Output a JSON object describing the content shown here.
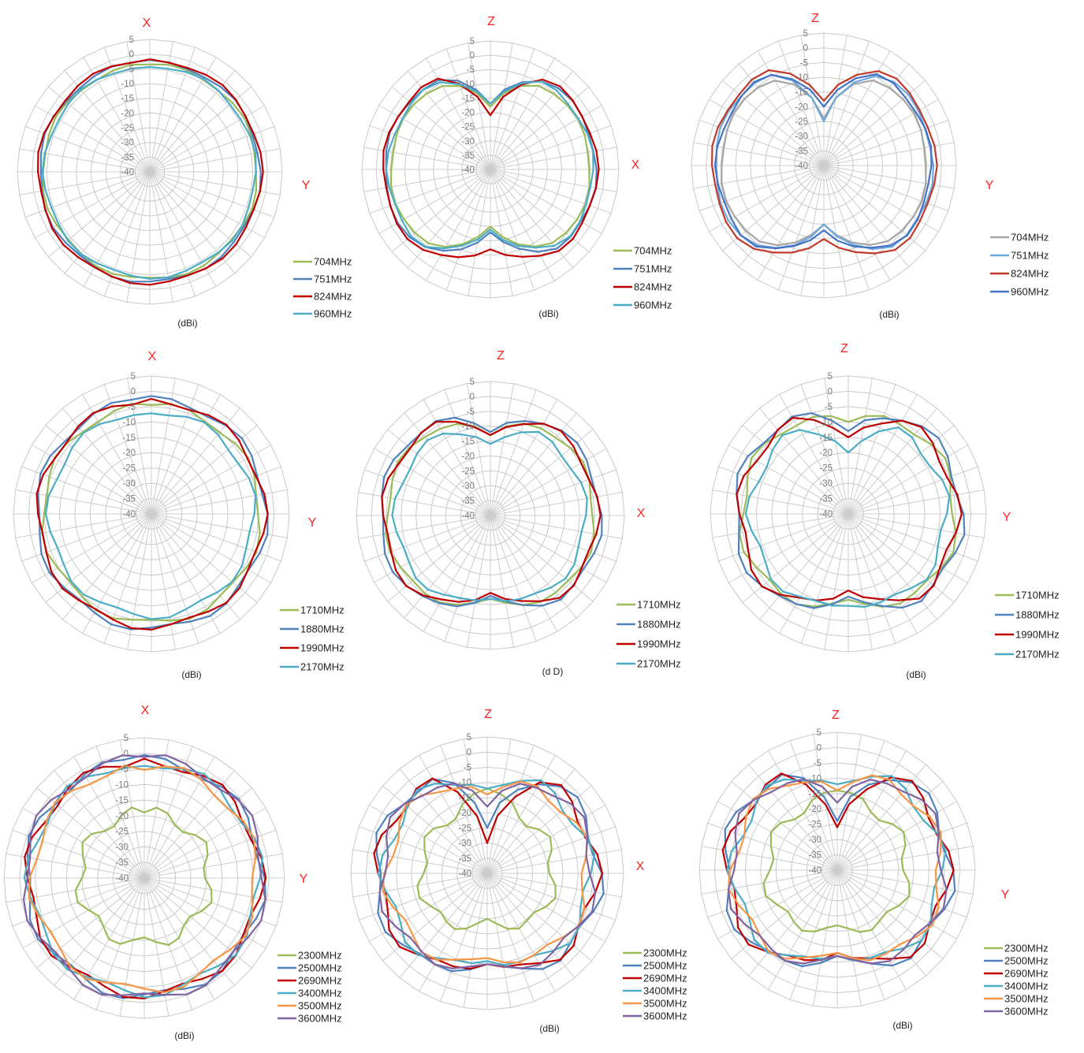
{
  "chart_data": [
    {
      "type": "polar-line",
      "letters": [
        "X",
        "Y"
      ],
      "unit": "(dBi)",
      "r_ticks": [
        "5",
        "0",
        "-5",
        "-10",
        "-15",
        "-20",
        "-25",
        "-30",
        "-35",
        "-40"
      ],
      "rlim": [
        -40,
        5
      ],
      "legend": [
        "704MHz",
        "751MHz",
        "824MHz",
        "960MHz"
      ],
      "series": [
        {
          "name": "704MHz",
          "color": "#9bbb59",
          "shape": "circle",
          "value": -3.5,
          "amp": 0.5,
          "phase": 0
        },
        {
          "name": "751MHz",
          "color": "#4f81bd",
          "shape": "circle",
          "value": -2.5,
          "amp": 0.5,
          "phase": 1
        },
        {
          "name": "824MHz",
          "color": "#c00000",
          "shape": "circle",
          "value": -2,
          "amp": 0.5,
          "phase": 2
        },
        {
          "name": "960MHz",
          "color": "#4bacc6",
          "shape": "circle",
          "value": -4,
          "amp": 0.5,
          "phase": 3
        }
      ]
    },
    {
      "type": "polar-line",
      "letters": [
        "Z",
        "X"
      ],
      "unit": "(dBi)",
      "r_ticks": [
        "5",
        "0",
        "-5",
        "-10",
        "-15",
        "-20",
        "-25",
        "-30",
        "-35",
        "-40"
      ],
      "rlim": [
        -40,
        5
      ],
      "legend": [
        "704MHz",
        "751MHz",
        "824MHz",
        "960MHz"
      ],
      "series": [
        {
          "name": "704MHz",
          "color": "#9bbb59",
          "shape": "heart",
          "value": -5,
          "amp": 0.5,
          "phase": 0,
          "notch_top": -18,
          "notch_bottom": -20
        },
        {
          "name": "751MHz",
          "color": "#4f81bd",
          "shape": "heart",
          "value": -3,
          "amp": 0.5,
          "phase": 1,
          "notch_top": -17,
          "notch_bottom": -18
        },
        {
          "name": "824MHz",
          "color": "#c00000",
          "shape": "heart",
          "value": -2.5,
          "amp": 0.5,
          "phase": 2,
          "notch_top": -21,
          "notch_bottom": -12
        },
        {
          "name": "960MHz",
          "color": "#4bacc6",
          "shape": "heart",
          "value": -4,
          "amp": 0.5,
          "phase": 3,
          "notch_top": -17,
          "notch_bottom": -19
        }
      ]
    },
    {
      "type": "polar-line",
      "letters": [
        "Z",
        "Y"
      ],
      "unit": "(dBi)",
      "r_ticks": [
        "5",
        "0",
        "-5",
        "-10",
        "-15",
        "-20",
        "-25",
        "-30",
        "-35",
        "-40"
      ],
      "rlim": [
        -40,
        5
      ],
      "legend": [
        "704MHz",
        "751MHz",
        "824MHz",
        "960MHz"
      ],
      "series": [
        {
          "name": "704MHz",
          "color": "#a5a5a5",
          "shape": "heart",
          "value": -5,
          "amp": 0.5,
          "phase": 0,
          "notch_top": -24,
          "notch_bottom": -20
        },
        {
          "name": "751MHz",
          "color": "#6fa8dc",
          "shape": "heart",
          "value": -3,
          "amp": 0.5,
          "phase": 1,
          "notch_top": -25,
          "notch_bottom": -20
        },
        {
          "name": "824MHz",
          "color": "#c0392b",
          "shape": "heart",
          "value": -2,
          "amp": 0.5,
          "phase": 2,
          "notch_top": -18,
          "notch_bottom": -15
        },
        {
          "name": "960MHz",
          "color": "#4472c4",
          "shape": "heart",
          "value": -3.5,
          "amp": 0.5,
          "phase": 3,
          "notch_top": -20,
          "notch_bottom": -18
        }
      ]
    },
    {
      "type": "polar-line",
      "letters": [
        "X",
        "Y"
      ],
      "unit": "(dBi)",
      "r_ticks": [
        "5",
        "0",
        "-5",
        "-10",
        "-15",
        "-20",
        "-25",
        "-30",
        "-35",
        "-40"
      ],
      "rlim": [
        -40,
        5
      ],
      "legend": [
        "1710MHz",
        "1880MHz",
        "1990MHz",
        "2170MHz"
      ],
      "series": [
        {
          "name": "1710MHz",
          "color": "#9bbb59",
          "shape": "circle",
          "value": -4.5,
          "amp": 1,
          "phase": 0
        },
        {
          "name": "1880MHz",
          "color": "#4f81bd",
          "shape": "circle",
          "value": -2.5,
          "amp": 1,
          "phase": 1
        },
        {
          "name": "1990MHz",
          "color": "#c00000",
          "shape": "circle",
          "value": -3,
          "amp": 1,
          "phase": 2
        },
        {
          "name": "2170MHz",
          "color": "#4bacc6",
          "shape": "circle",
          "value": -6.5,
          "amp": 1,
          "phase": 3
        }
      ]
    },
    {
      "type": "polar-line",
      "letters": [
        "Z",
        "X"
      ],
      "unit": "(d D)",
      "r_ticks": [
        "5",
        "0",
        "-5",
        "-10",
        "-15",
        "-20",
        "-25",
        "-30",
        "-35",
        "-40"
      ],
      "rlim": [
        -40,
        5
      ],
      "legend": [
        "1710MHz",
        "1880MHz",
        "1990MHz",
        "2170MHz"
      ],
      "series": [
        {
          "name": "1710MHz",
          "color": "#9bbb59",
          "shape": "heart",
          "value": -5,
          "amp": 1,
          "phase": 0,
          "notch_top": -13,
          "notch_bottom": -12
        },
        {
          "name": "1880MHz",
          "color": "#4f81bd",
          "shape": "heart",
          "value": -3,
          "amp": 1,
          "phase": 1,
          "notch_top": -12,
          "notch_bottom": -13
        },
        {
          "name": "1990MHz",
          "color": "#c00000",
          "shape": "heart",
          "value": -4,
          "amp": 1,
          "phase": 2,
          "notch_top": -13,
          "notch_bottom": -14
        },
        {
          "name": "2170MHz",
          "color": "#4bacc6",
          "shape": "heart",
          "value": -8,
          "amp": 1,
          "phase": 3,
          "notch_top": -16,
          "notch_bottom": -12
        }
      ]
    },
    {
      "type": "polar-line",
      "letters": [
        "Z",
        "Y"
      ],
      "unit": "(dBi)",
      "r_ticks": [
        "5",
        "0",
        "-5",
        "-10",
        "-15",
        "-20",
        "-25",
        "-30",
        "-35",
        "-40"
      ],
      "rlim": [
        -40,
        5
      ],
      "legend": [
        "1710MHz",
        "1880MHz",
        "1990MHz",
        "2170MHz"
      ],
      "series": [
        {
          "name": "1710MHz",
          "color": "#9bbb59",
          "shape": "heart",
          "value": -5,
          "amp": 1.5,
          "phase": 0,
          "notch_top": -10,
          "notch_bottom": -12
        },
        {
          "name": "1880MHz",
          "color": "#4f81bd",
          "shape": "heart",
          "value": -3,
          "amp": 1.5,
          "phase": 1,
          "notch_top": -13,
          "notch_bottom": -13
        },
        {
          "name": "1990MHz",
          "color": "#c00000",
          "shape": "heart",
          "value": -4.5,
          "amp": 1.5,
          "phase": 2,
          "notch_top": -15,
          "notch_bottom": -15
        },
        {
          "name": "2170MHz",
          "color": "#4bacc6",
          "shape": "heart",
          "value": -8,
          "amp": 1.5,
          "phase": 3,
          "notch_top": -20,
          "notch_bottom": -10
        }
      ]
    },
    {
      "type": "polar-line",
      "letters": [
        "X",
        "Y"
      ],
      "unit": "(dBi)",
      "r_ticks": [
        "5",
        "0",
        "-5",
        "-10",
        "-15",
        "-20",
        "-25",
        "-30",
        "-35",
        "-40"
      ],
      "rlim": [
        -40,
        5
      ],
      "legend": [
        "2300MHz",
        "2500MHz",
        "2690MHz",
        "3400MHz",
        "3500MHz",
        "3600MHz"
      ],
      "series": [
        {
          "name": "2300MHz",
          "color": "#9bbb59",
          "shape": "circle",
          "value": -19,
          "amp": 2,
          "phase": 0
        },
        {
          "name": "2500MHz",
          "color": "#4f81bd",
          "shape": "circle",
          "value": -2,
          "amp": 1.5,
          "phase": 1
        },
        {
          "name": "2690MHz",
          "color": "#c00000",
          "shape": "circle",
          "value": -2.5,
          "amp": 1.5,
          "phase": 2
        },
        {
          "name": "3400MHz",
          "color": "#4bacc6",
          "shape": "circle",
          "value": -3,
          "amp": 1.5,
          "phase": 3
        },
        {
          "name": "3500MHz",
          "color": "#f79646",
          "shape": "circle",
          "value": -4,
          "amp": 1.5,
          "phase": 4
        },
        {
          "name": "3600MHz",
          "color": "#8064a2",
          "shape": "circle",
          "value": -1.5,
          "amp": 1.5,
          "phase": 5
        }
      ]
    },
    {
      "type": "polar-line",
      "letters": [
        "Z",
        "X"
      ],
      "unit": "(dBi)",
      "r_ticks": [
        "5",
        "0",
        "-5",
        "-10",
        "-15",
        "-20",
        "-25",
        "-30",
        "-35",
        "-40"
      ],
      "rlim": [
        -40,
        5
      ],
      "legend": [
        "2300MHz",
        "2500MHz",
        "2690MHz",
        "3400MHz",
        "3500MHz",
        "3600MHz"
      ],
      "series": [
        {
          "name": "2300MHz",
          "color": "#9bbb59",
          "shape": "heart",
          "value": -18,
          "amp": 2,
          "phase": 0,
          "notch_top": -12,
          "notch_bottom": -25
        },
        {
          "name": "2500MHz",
          "color": "#4f81bd",
          "shape": "heart",
          "value": -3,
          "amp": 2,
          "phase": 1,
          "notch_top": -25,
          "notch_bottom": -10
        },
        {
          "name": "2690MHz",
          "color": "#c00000",
          "shape": "heart",
          "value": -4,
          "amp": 2,
          "phase": 2,
          "notch_top": -30,
          "notch_bottom": -10
        },
        {
          "name": "3400MHz",
          "color": "#4bacc6",
          "shape": "heart",
          "value": -6,
          "amp": 2,
          "phase": 3,
          "notch_top": -12,
          "notch_bottom": -11
        },
        {
          "name": "3500MHz",
          "color": "#f79646",
          "shape": "heart",
          "value": -7,
          "amp": 2,
          "phase": 4,
          "notch_top": -14,
          "notch_bottom": -12
        },
        {
          "name": "3600MHz",
          "color": "#8064a2",
          "shape": "heart",
          "value": -5,
          "amp": 2,
          "phase": 5,
          "notch_top": -18,
          "notch_bottom": -10
        }
      ]
    },
    {
      "type": "polar-line",
      "letters": [
        "Z",
        "Y"
      ],
      "unit": "(dBi)",
      "r_ticks": [
        "5",
        "0",
        "-5",
        "-10",
        "-15",
        "-20",
        "-25",
        "-30",
        "-35",
        "-40"
      ],
      "rlim": [
        -40,
        5
      ],
      "legend": [
        "2300MHz",
        "2500MHz",
        "2690MHz",
        "3400MHz",
        "3500MHz",
        "3600MHz"
      ],
      "series": [
        {
          "name": "2300MHz",
          "color": "#9bbb59",
          "shape": "heart",
          "value": -17,
          "amp": 2,
          "phase": 0,
          "notch_top": -14,
          "notch_bottom": -22
        },
        {
          "name": "2500MHz",
          "color": "#4f81bd",
          "shape": "heart",
          "value": -3,
          "amp": 2,
          "phase": 1,
          "notch_top": -24,
          "notch_bottom": -12
        },
        {
          "name": "2690MHz",
          "color": "#c00000",
          "shape": "heart",
          "value": -4,
          "amp": 2,
          "phase": 2,
          "notch_top": -26,
          "notch_bottom": -13
        },
        {
          "name": "3400MHz",
          "color": "#4bacc6",
          "shape": "heart",
          "value": -6,
          "amp": 2,
          "phase": 3,
          "notch_top": -12,
          "notch_bottom": -12
        },
        {
          "name": "3500MHz",
          "color": "#f79646",
          "shape": "heart",
          "value": -6,
          "amp": 2,
          "phase": 4,
          "notch_top": -14,
          "notch_bottom": -13
        },
        {
          "name": "3600MHz",
          "color": "#8064a2",
          "shape": "heart",
          "value": -5,
          "amp": 2,
          "phase": 5,
          "notch_top": -18,
          "notch_bottom": -12
        }
      ]
    }
  ]
}
